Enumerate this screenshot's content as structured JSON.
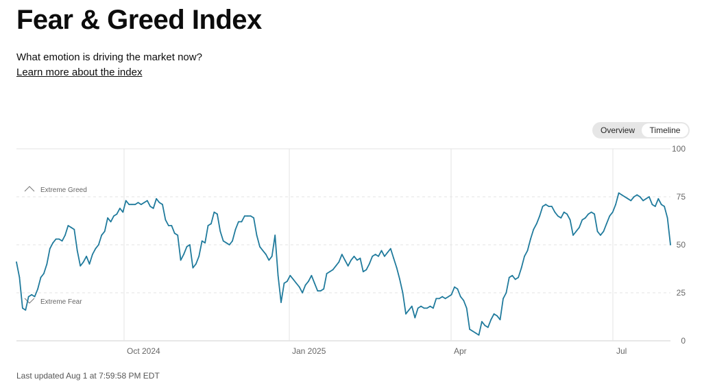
{
  "header": {
    "title": "Fear & Greed Index",
    "subtitle": "What emotion is driving the market now?",
    "learn_more": "Learn more about the index"
  },
  "view_toggle": {
    "overview_label": "Overview",
    "timeline_label": "Timeline",
    "selected": "Timeline"
  },
  "footer": {
    "last_updated": "Last updated Aug 1 at 7:59:58 PM EDT"
  },
  "colors": {
    "line": "#1f7a9c",
    "grid": "#e3e3e3",
    "text_muted": "#666666"
  },
  "chart_data": {
    "type": "line",
    "title": "",
    "xlabel": "",
    "ylabel": "",
    "ylim": [
      0,
      100
    ],
    "y_ticks": [
      "100",
      "75",
      "50",
      "25",
      "0"
    ],
    "x_ticks": [
      "Oct 2024",
      "Jan 2025",
      "Apr",
      "Jul"
    ],
    "grid": true,
    "reference_lines": [
      {
        "label": "Extreme Greed",
        "value": 75,
        "icon": "chevron-up-icon"
      },
      {
        "label": "Extreme Fear",
        "value": 25,
        "icon": "chevron-down-icon"
      }
    ],
    "series": [
      {
        "values": [
          41,
          33,
          17,
          16,
          23,
          24,
          23,
          27,
          33,
          35,
          40,
          48,
          51,
          53,
          53,
          52,
          55,
          60,
          59,
          58,
          47,
          39,
          41,
          44,
          40,
          45,
          48,
          50,
          55,
          57,
          64,
          62,
          65,
          66,
          69,
          67,
          73,
          71,
          71,
          71,
          72,
          71,
          72,
          73,
          70,
          69,
          74,
          72,
          71,
          63,
          60,
          60,
          56,
          55,
          42,
          45,
          49,
          50,
          38,
          40,
          44,
          52,
          51,
          60,
          61,
          67,
          66,
          57,
          52,
          51,
          50,
          52,
          58,
          62,
          62,
          65,
          65,
          65,
          64,
          55,
          49,
          47,
          45,
          42,
          44,
          55,
          34,
          20,
          30,
          31,
          34,
          32,
          30,
          28,
          25,
          29,
          31,
          34,
          30,
          26,
          26,
          27,
          35,
          36,
          37,
          39,
          41,
          45,
          42,
          39,
          42,
          44,
          42,
          43,
          36,
          37,
          40,
          44,
          45,
          44,
          47,
          44,
          46,
          48,
          43,
          38,
          32,
          25,
          14,
          16,
          18,
          12,
          17,
          18,
          17,
          17,
          18,
          17,
          22,
          22,
          23,
          22,
          23,
          24,
          28,
          27,
          23,
          21,
          17,
          6,
          5,
          4,
          3,
          10,
          8,
          7,
          11,
          14,
          13,
          11,
          22,
          25,
          33,
          34,
          32,
          33,
          38,
          44,
          47,
          53,
          58,
          61,
          65,
          70,
          71,
          70,
          70,
          67,
          65,
          64,
          67,
          66,
          63,
          55,
          57,
          59,
          63,
          64,
          66,
          67,
          66,
          57,
          55,
          57,
          61,
          65,
          67,
          71,
          77,
          76,
          75,
          74,
          73,
          75,
          76,
          75,
          73,
          74,
          75,
          71,
          70,
          74,
          71,
          70,
          64,
          50
        ]
      }
    ]
  }
}
